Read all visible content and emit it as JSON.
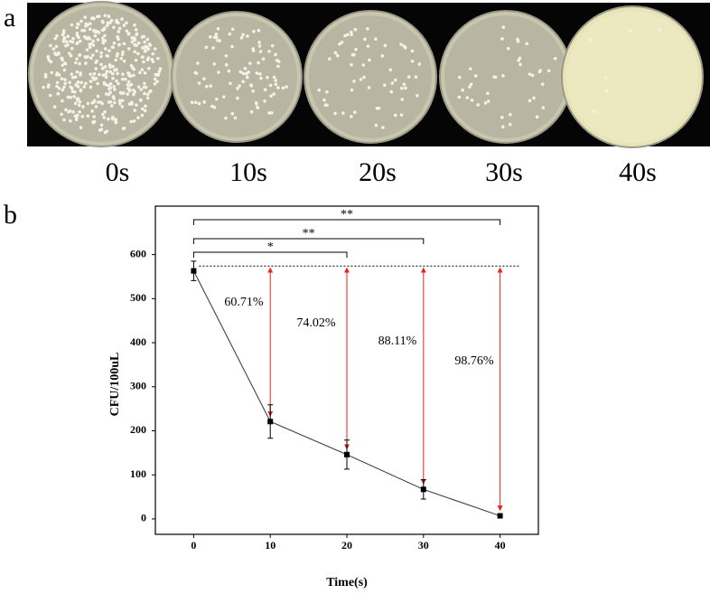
{
  "photo_panel": {
    "label": "a",
    "captions": [
      "0s",
      "10s",
      "20s",
      "30s",
      "40s"
    ]
  },
  "chart_data": {
    "type": "line",
    "panel_label": "b",
    "x_label": "Time(s)",
    "y_label": "CFU/100uL",
    "x": [
      0,
      10,
      20,
      30,
      40
    ],
    "values": [
      563,
      221,
      146,
      67,
      7
    ],
    "errors": [
      22,
      38,
      33,
      22,
      2
    ],
    "color": "#333333",
    "xlim": [
      -5,
      45
    ],
    "ylim": [
      -35,
      710
    ],
    "xticks": [
      0,
      10,
      20,
      30,
      40
    ],
    "yticks": [
      0,
      100,
      200,
      300,
      400,
      500,
      600
    ],
    "reference_line": 574,
    "reduction_labels": [
      "60.71%",
      "74.02%",
      "88.11%",
      "98.76%"
    ],
    "arrow_color": "#e8231f",
    "significance": [
      {
        "from": 0,
        "to": 20,
        "label": "*"
      },
      {
        "from": 0,
        "to": 30,
        "label": "**"
      },
      {
        "from": 0,
        "to": 40,
        "label": "**"
      }
    ]
  }
}
